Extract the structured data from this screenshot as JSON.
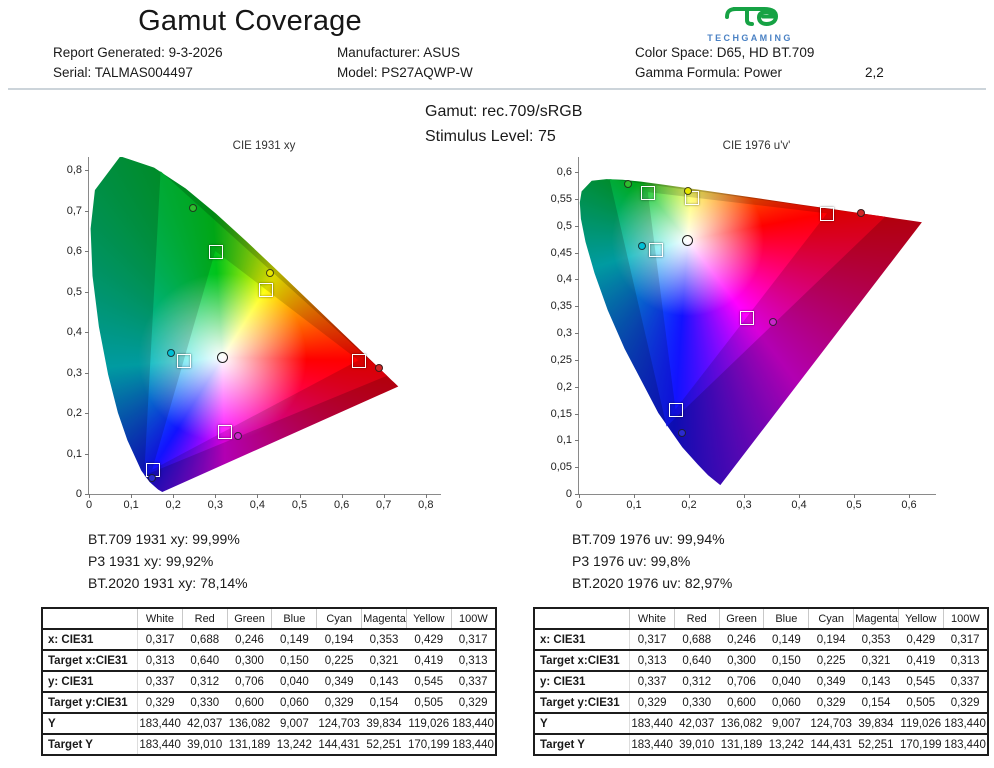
{
  "header": {
    "title": "Gamut Coverage",
    "logo_text": "TECHGAMING",
    "brand_green": "#16a244",
    "brand_blue": "#4b82c4",
    "info": {
      "report_generated": "Report Generated: 9-3-2026",
      "serial": "Serial: TALMAS004497",
      "manufacturer": "Manufacturer: ASUS",
      "model": "Model: PS27AQWP-W",
      "color_space": "Color Space: D65, HD BT.709",
      "gamma_formula": "Gamma Formula: Power",
      "gamma_value": "2,2"
    }
  },
  "subheader": {
    "gamut": "Gamut: rec.709/sRGB",
    "stimulus": "Stimulus Level: 75"
  },
  "chart_data": {
    "type": "scatter",
    "primaries": [
      {
        "name": "White",
        "measured": {
          "x": 0.317,
          "y": 0.337
        },
        "target": {
          "x": 0.313,
          "y": 0.329
        },
        "dot_color": "open"
      },
      {
        "name": "Red",
        "measured": {
          "x": 0.688,
          "y": 0.312
        },
        "target": {
          "x": 0.64,
          "y": 0.33
        },
        "dot_color": "#cf2727"
      },
      {
        "name": "Green",
        "measured": {
          "x": 0.246,
          "y": 0.706
        },
        "target": {
          "x": 0.3,
          "y": 0.6
        },
        "dot_color": "#2fbd2f"
      },
      {
        "name": "Blue",
        "measured": {
          "x": 0.149,
          "y": 0.04
        },
        "target": {
          "x": 0.15,
          "y": 0.06
        },
        "dot_color": "#2b2bd0"
      },
      {
        "name": "Cyan",
        "measured": {
          "x": 0.194,
          "y": 0.349
        },
        "target": {
          "x": 0.225,
          "y": 0.329
        },
        "dot_color": "#00c0d6"
      },
      {
        "name": "Magenta",
        "measured": {
          "x": 0.353,
          "y": 0.143
        },
        "target": {
          "x": 0.321,
          "y": 0.154
        },
        "dot_color": "#c926c9"
      },
      {
        "name": "Yellow",
        "measured": {
          "x": 0.429,
          "y": 0.545
        },
        "target": {
          "x": 0.419,
          "y": 0.505
        },
        "dot_color": "#e6e600"
      }
    ],
    "reference_gamuts": {
      "rec709": {
        "red": [
          0.64,
          0.33
        ],
        "green": [
          0.3,
          0.6
        ],
        "blue": [
          0.15,
          0.06
        ]
      },
      "bt2020": {
        "red": [
          0.708,
          0.292
        ],
        "green": [
          0.17,
          0.797
        ],
        "blue": [
          0.131,
          0.046
        ]
      }
    },
    "charts": [
      {
        "id": "cie1931",
        "title": "CIE 1931 xy",
        "space": "xy",
        "xlim": [
          0,
          0.836
        ],
        "ylim": [
          0,
          0.832
        ],
        "x_tick_step": 0.1,
        "y_tick_step": 0.1,
        "x_tick_labels": [
          "0",
          "0,1",
          "0,2",
          "0,3",
          "0,4",
          "0,5",
          "0,6",
          "0,7",
          "0,8"
        ],
        "y_tick_labels": [
          "0",
          "0,1",
          "0,2",
          "0,3",
          "0,4",
          "0,5",
          "0,6",
          "0,7",
          "0,8"
        ],
        "coverage": [
          "BT.709 1931 xy: 99,99%",
          "P3 1931 xy: 99,92%",
          "BT.2020 1931 xy: 78,14%"
        ]
      },
      {
        "id": "cie1976",
        "title": "CIE 1976 u'v'",
        "space": "uv",
        "xlim": [
          0,
          0.649
        ],
        "ylim": [
          0,
          0.628
        ],
        "x_tick_step": 0.1,
        "y_tick_step": 0.05,
        "x_tick_labels": [
          "0",
          "0,1",
          "0,2",
          "0,3",
          "0,4",
          "0,5",
          "0,6"
        ],
        "y_tick_labels": [
          "0",
          "0,05",
          "0,1",
          "0,15",
          "0,2",
          "0,25",
          "0,3",
          "0,35",
          "0,4",
          "0,45",
          "0,5",
          "0,55",
          "0,6"
        ],
        "coverage": [
          "BT.709 1976 uv: 99,94%",
          "P3 1976 uv: 99,8%",
          "BT.2020 1976 uv: 82,97%"
        ]
      }
    ]
  },
  "tables": [
    {
      "columns": [
        "",
        "White",
        "Red",
        "Green",
        "Blue",
        "Cyan",
        "Magenta",
        "Yellow",
        "100W"
      ],
      "rows": [
        {
          "label": "x: CIE31",
          "values": [
            "0,317",
            "0,688",
            "0,246",
            "0,149",
            "0,194",
            "0,353",
            "0,429",
            "0,317"
          ]
        },
        {
          "label": "Target x:CIE31",
          "values": [
            "0,313",
            "0,640",
            "0,300",
            "0,150",
            "0,225",
            "0,321",
            "0,419",
            "0,313"
          ]
        },
        {
          "label": "y: CIE31",
          "values": [
            "0,337",
            "0,312",
            "0,706",
            "0,040",
            "0,349",
            "0,143",
            "0,545",
            "0,337"
          ]
        },
        {
          "label": "Target y:CIE31",
          "values": [
            "0,329",
            "0,330",
            "0,600",
            "0,060",
            "0,329",
            "0,154",
            "0,505",
            "0,329"
          ]
        },
        {
          "label": "Y",
          "values": [
            "183,440",
            "42,037",
            "136,082",
            "9,007",
            "124,703",
            "39,834",
            "119,026",
            "183,440"
          ]
        },
        {
          "label": "Target Y",
          "values": [
            "183,440",
            "39,010",
            "131,189",
            "13,242",
            "144,431",
            "52,251",
            "170,199",
            "183,440"
          ]
        }
      ]
    },
    {
      "columns": [
        "",
        "White",
        "Red",
        "Green",
        "Blue",
        "Cyan",
        "Magenta",
        "Yellow",
        "100W"
      ],
      "rows": [
        {
          "label": "x: CIE31",
          "values": [
            "0,317",
            "0,688",
            "0,246",
            "0,149",
            "0,194",
            "0,353",
            "0,429",
            "0,317"
          ]
        },
        {
          "label": "Target x:CIE31",
          "values": [
            "0,313",
            "0,640",
            "0,300",
            "0,150",
            "0,225",
            "0,321",
            "0,419",
            "0,313"
          ]
        },
        {
          "label": "y: CIE31",
          "values": [
            "0,337",
            "0,312",
            "0,706",
            "0,040",
            "0,349",
            "0,143",
            "0,545",
            "0,337"
          ]
        },
        {
          "label": "Target y:CIE31",
          "values": [
            "0,329",
            "0,330",
            "0,600",
            "0,060",
            "0,329",
            "0,154",
            "0,505",
            "0,329"
          ]
        },
        {
          "label": "Y",
          "values": [
            "183,440",
            "42,037",
            "136,082",
            "9,007",
            "124,703",
            "39,834",
            "119,026",
            "183,440"
          ]
        },
        {
          "label": "Target Y",
          "values": [
            "183,440",
            "39,010",
            "131,189",
            "13,242",
            "144,431",
            "52,251",
            "170,199",
            "183,440"
          ]
        }
      ]
    }
  ]
}
